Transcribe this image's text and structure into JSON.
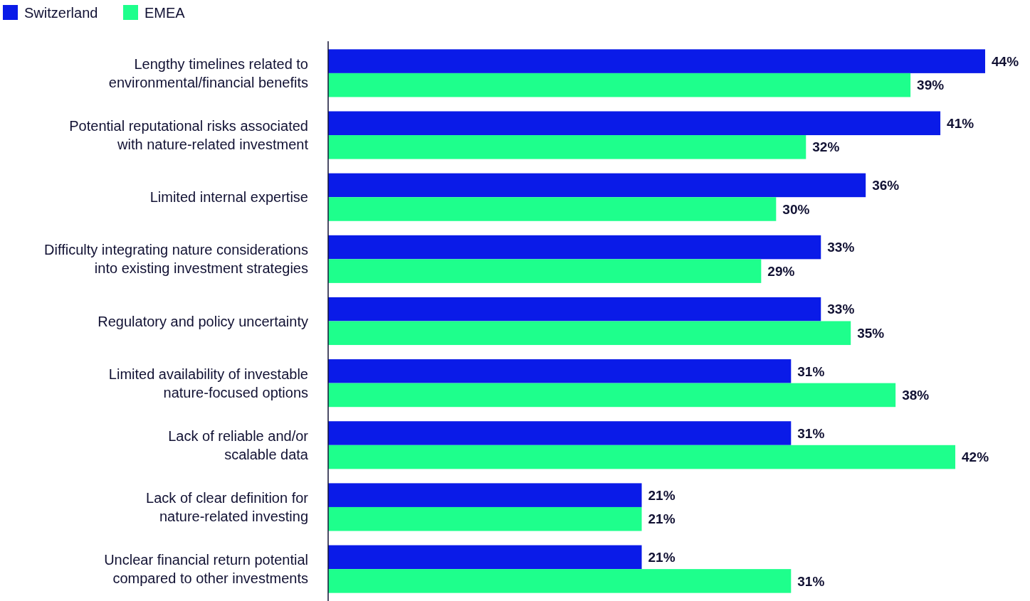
{
  "chart_data": {
    "type": "bar",
    "orientation": "horizontal",
    "legend": "top left",
    "categories": [
      "Lengthy timelines related to\nenvironmental/financial benefits",
      "Potential reputational risks associated\nwith nature-related investment",
      "Limited internal expertise",
      "Difficulty integrating nature considerations\ninto existing investment strategies",
      "Regulatory and policy uncertainty",
      "Limited availability of investable\nnature-focused options",
      "Lack of reliable and/or\nscalable data",
      "Lack of clear definition for\nnature-related investing",
      "Unclear financial return potential\ncompared to other investments"
    ],
    "series": [
      {
        "name": "Switzerland",
        "color": "#0a1be8",
        "values": [
          44,
          41,
          36,
          33,
          33,
          31,
          31,
          21,
          21
        ],
        "value_labels": [
          "44%",
          "41%",
          "36%",
          "33%",
          "33%",
          "31%",
          "31%",
          "21%",
          "21%"
        ]
      },
      {
        "name": "EMEA",
        "color": "#1eff8c",
        "values": [
          39,
          32,
          30,
          29,
          35,
          38,
          42,
          21,
          31
        ],
        "value_labels": [
          "39%",
          "32%",
          "30%",
          "29%",
          "35%",
          "38%",
          "42%",
          "21%",
          "31%"
        ]
      }
    ]
  }
}
